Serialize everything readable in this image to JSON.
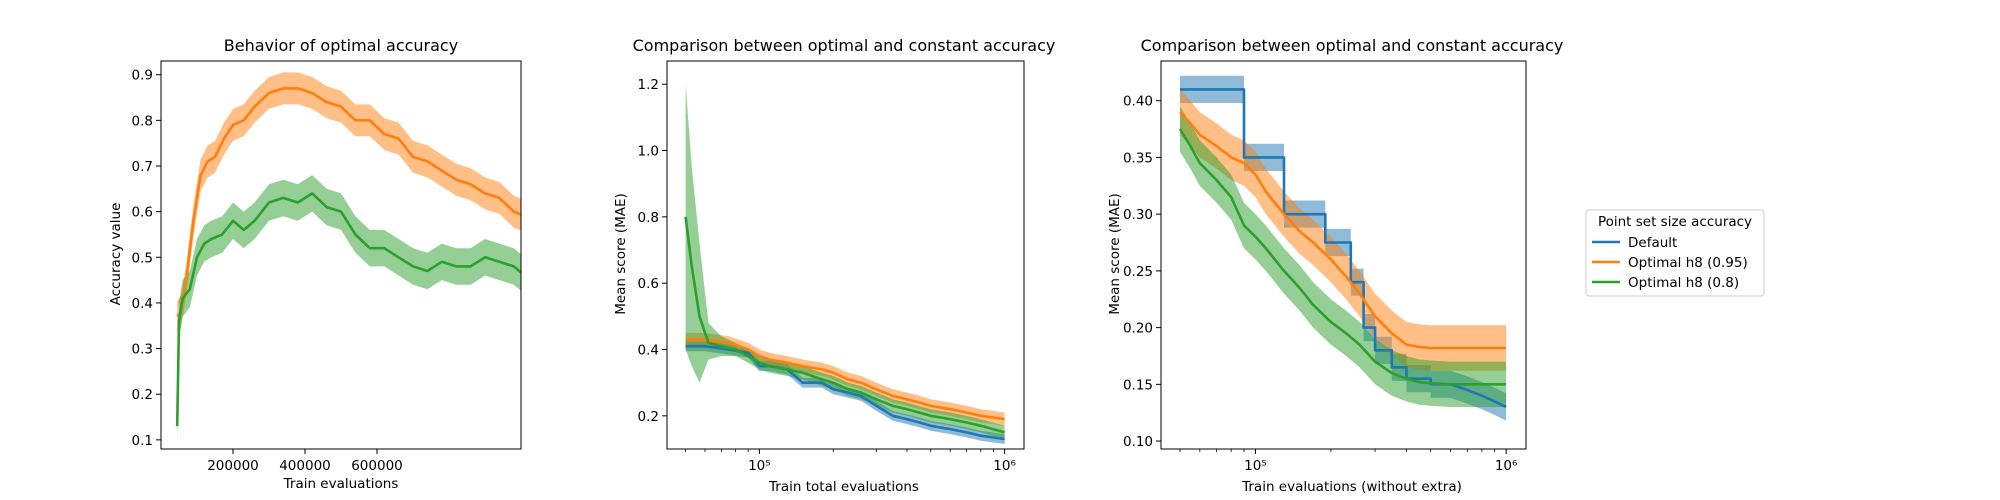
{
  "colors": {
    "blue": "#1f77b4",
    "orange": "#ff7f0e",
    "green": "#2ca02c"
  },
  "legend": {
    "title": "Point set size accuracy",
    "items": [
      {
        "label": "Default",
        "color": "#1f77b4"
      },
      {
        "label": "Optimal h8 (0.95)",
        "color": "#ff7f0e"
      },
      {
        "label": "Optimal h8 (0.8)",
        "color": "#2ca02c"
      }
    ]
  },
  "chart_data": [
    {
      "type": "line",
      "title": "Behavior of optimal accuracy",
      "xlabel": "Train evaluations",
      "ylabel": "Accuracy value",
      "xscale": "linear",
      "xlim": [
        0,
        1000000
      ],
      "ylim": [
        0.08,
        0.93
      ],
      "xticks": [
        200000,
        400000,
        600000
      ],
      "xtick_labels": [
        "200000",
        "400000",
        "600000"
      ],
      "yticks": [
        0.1,
        0.2,
        0.3,
        0.4,
        0.5,
        0.6,
        0.7,
        0.8,
        0.9
      ],
      "ytick_labels": [
        "0.1",
        "0.2",
        "0.3",
        "0.4",
        "0.5",
        "0.6",
        "0.7",
        "0.8",
        "0.9"
      ],
      "grid": false,
      "series": [
        {
          "color": "#ff7f0e",
          "x": [
            45000,
            55000,
            70000,
            90000,
            110000,
            130000,
            150000,
            175000,
            200000,
            230000,
            260000,
            300000,
            340000,
            380000,
            420000,
            460000,
            500000,
            540000,
            580000,
            620000,
            660000,
            700000,
            740000,
            780000,
            820000,
            860000,
            900000,
            940000,
            980000,
            1010000
          ],
          "y": [
            0.37,
            0.38,
            0.45,
            0.58,
            0.68,
            0.71,
            0.72,
            0.76,
            0.79,
            0.8,
            0.83,
            0.86,
            0.87,
            0.87,
            0.86,
            0.84,
            0.83,
            0.8,
            0.8,
            0.77,
            0.76,
            0.72,
            0.71,
            0.69,
            0.67,
            0.66,
            0.64,
            0.63,
            0.6,
            0.59
          ],
          "band": 0.035
        },
        {
          "color": "#2ca02c",
          "x": [
            45000,
            50000,
            60000,
            80000,
            100000,
            120000,
            140000,
            170000,
            200000,
            230000,
            260000,
            300000,
            340000,
            380000,
            420000,
            460000,
            500000,
            540000,
            580000,
            620000,
            660000,
            700000,
            740000,
            780000,
            820000,
            860000,
            900000,
            940000,
            980000,
            1010000
          ],
          "y": [
            0.13,
            0.36,
            0.41,
            0.43,
            0.5,
            0.53,
            0.54,
            0.55,
            0.58,
            0.56,
            0.58,
            0.62,
            0.63,
            0.62,
            0.64,
            0.61,
            0.6,
            0.55,
            0.52,
            0.52,
            0.5,
            0.48,
            0.47,
            0.49,
            0.48,
            0.48,
            0.5,
            0.49,
            0.48,
            0.46
          ],
          "band": 0.04
        }
      ]
    },
    {
      "type": "line",
      "title": "Comparison between optimal and constant accuracy",
      "xlabel": "Train total evaluations",
      "ylabel": "Mean score (MAE)",
      "xscale": "log",
      "xlim": [
        42000,
        1200000
      ],
      "ylim": [
        0.1,
        1.27
      ],
      "xticks": [
        100000,
        1000000
      ],
      "xtick_labels": [
        "10⁵",
        "10⁶"
      ],
      "yticks": [
        0.2,
        0.4,
        0.6,
        0.8,
        1.0,
        1.2
      ],
      "ytick_labels": [
        "0.2",
        "0.4",
        "0.6",
        "0.8",
        "1.0",
        "1.2"
      ],
      "grid": false,
      "series": [
        {
          "color": "#1f77b4",
          "x": [
            50000,
            60000,
            75000,
            90000,
            100000,
            110000,
            130000,
            150000,
            180000,
            200000,
            230000,
            260000,
            300000,
            350000,
            400000,
            450000,
            500000,
            600000,
            700000,
            800000,
            1000000
          ],
          "y": [
            0.41,
            0.41,
            0.4,
            0.39,
            0.35,
            0.35,
            0.34,
            0.3,
            0.3,
            0.28,
            0.27,
            0.26,
            0.23,
            0.2,
            0.19,
            0.18,
            0.17,
            0.16,
            0.15,
            0.14,
            0.13
          ],
          "band": 0.015
        },
        {
          "color": "#ff7f0e",
          "x": [
            50000,
            60000,
            75000,
            90000,
            100000,
            110000,
            130000,
            150000,
            180000,
            200000,
            230000,
            260000,
            300000,
            350000,
            400000,
            450000,
            500000,
            600000,
            700000,
            800000,
            1000000
          ],
          "y": [
            0.43,
            0.43,
            0.42,
            0.4,
            0.38,
            0.37,
            0.36,
            0.35,
            0.34,
            0.33,
            0.31,
            0.3,
            0.28,
            0.26,
            0.25,
            0.24,
            0.23,
            0.22,
            0.21,
            0.2,
            0.19
          ],
          "band": 0.02
        },
        {
          "color": "#2ca02c",
          "x": [
            50000,
            53000,
            57000,
            62000,
            70000,
            80000,
            90000,
            100000,
            110000,
            130000,
            150000,
            180000,
            200000,
            230000,
            260000,
            300000,
            350000,
            400000,
            500000,
            600000,
            700000,
            800000,
            1000000
          ],
          "y": [
            0.8,
            0.65,
            0.5,
            0.42,
            0.41,
            0.4,
            0.38,
            0.36,
            0.35,
            0.34,
            0.33,
            0.31,
            0.3,
            0.28,
            0.27,
            0.25,
            0.23,
            0.22,
            0.2,
            0.19,
            0.18,
            0.17,
            0.15
          ],
          "band_upper": [
            1.2,
            0.95,
            0.72,
            0.48,
            0.44,
            0.42,
            0.4,
            0.38,
            0.37,
            0.36,
            0.35,
            0.33,
            0.32,
            0.3,
            0.29,
            0.27,
            0.25,
            0.24,
            0.22,
            0.21,
            0.2,
            0.19,
            0.17
          ],
          "band_lower": [
            0.4,
            0.35,
            0.3,
            0.37,
            0.38,
            0.38,
            0.36,
            0.34,
            0.33,
            0.32,
            0.31,
            0.29,
            0.28,
            0.26,
            0.25,
            0.23,
            0.21,
            0.2,
            0.18,
            0.17,
            0.16,
            0.15,
            0.13
          ]
        }
      ]
    },
    {
      "type": "line",
      "title": "Comparison between optimal and constant accuracy",
      "xlabel": "Train evaluations (without extra)",
      "ylabel": "Mean score (MAE)",
      "xscale": "log",
      "xlim": [
        42000,
        1200000
      ],
      "ylim": [
        0.093,
        0.435
      ],
      "xticks": [
        100000,
        1000000
      ],
      "xtick_labels": [
        "10⁵",
        "10⁶"
      ],
      "yticks": [
        0.1,
        0.15,
        0.2,
        0.25,
        0.3,
        0.35,
        0.4
      ],
      "ytick_labels": [
        "0.10",
        "0.15",
        "0.20",
        "0.25",
        "0.30",
        "0.35",
        "0.40"
      ],
      "grid": false,
      "series": [
        {
          "color": "#1f77b4",
          "x": [
            50000,
            90000,
            90000,
            100000,
            130000,
            130000,
            150000,
            190000,
            190000,
            220000,
            240000,
            240000,
            270000,
            270000,
            300000,
            300000,
            350000,
            350000,
            400000,
            400000,
            500000,
            500000,
            600000,
            700000,
            800000,
            900000,
            1000000
          ],
          "y": [
            0.41,
            0.41,
            0.35,
            0.35,
            0.35,
            0.3,
            0.3,
            0.3,
            0.275,
            0.275,
            0.275,
            0.24,
            0.24,
            0.2,
            0.2,
            0.18,
            0.18,
            0.165,
            0.165,
            0.155,
            0.155,
            0.15,
            0.15,
            0.145,
            0.14,
            0.135,
            0.13
          ],
          "band": 0.012
        },
        {
          "color": "#ff7f0e",
          "x": [
            50000,
            55000,
            60000,
            70000,
            80000,
            90000,
            100000,
            110000,
            130000,
            150000,
            170000,
            200000,
            230000,
            260000,
            300000,
            350000,
            400000,
            450000,
            500000,
            600000,
            700000,
            800000,
            1000000
          ],
          "y": [
            0.39,
            0.38,
            0.37,
            0.36,
            0.35,
            0.345,
            0.335,
            0.32,
            0.3,
            0.285,
            0.275,
            0.26,
            0.245,
            0.23,
            0.21,
            0.195,
            0.185,
            0.183,
            0.182,
            0.182,
            0.182,
            0.182,
            0.182
          ],
          "band": 0.02
        },
        {
          "color": "#2ca02c",
          "x": [
            50000,
            55000,
            60000,
            70000,
            80000,
            90000,
            100000,
            110000,
            130000,
            150000,
            170000,
            200000,
            230000,
            260000,
            300000,
            350000,
            400000,
            450000,
            500000,
            600000,
            700000,
            800000,
            1000000
          ],
          "y": [
            0.375,
            0.36,
            0.345,
            0.33,
            0.315,
            0.29,
            0.28,
            0.27,
            0.25,
            0.235,
            0.22,
            0.205,
            0.195,
            0.185,
            0.17,
            0.16,
            0.155,
            0.152,
            0.151,
            0.15,
            0.15,
            0.15,
            0.15
          ],
          "band": 0.02
        }
      ]
    }
  ]
}
